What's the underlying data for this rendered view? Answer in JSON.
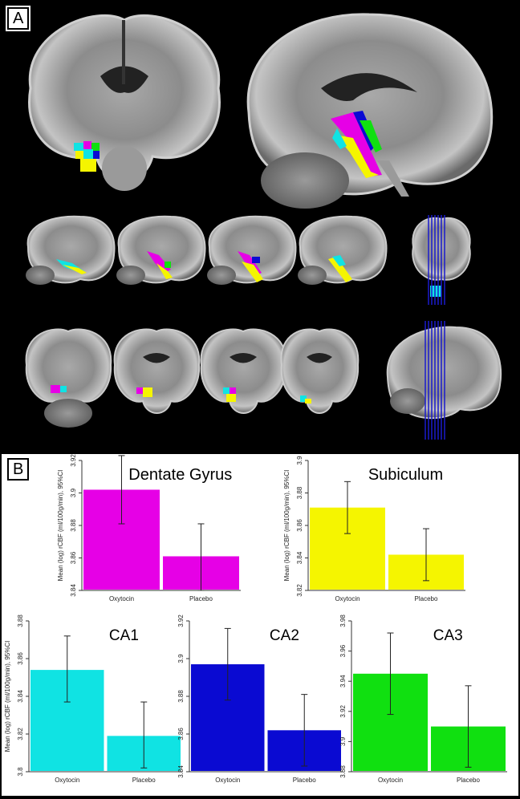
{
  "panel_a": {
    "label": "A",
    "atlas_colors": {
      "dentate_gyrus": "#e600e6",
      "subiculum": "#f5f500",
      "ca1": "#10e3e3",
      "ca2": "#0a0ad2",
      "ca3": "#10e010"
    }
  },
  "panel_b": {
    "label": "B"
  },
  "colors": {
    "background": "#000000",
    "chart_bg": "#ffffff",
    "axis": "#333333",
    "errorbar": "#222222"
  },
  "chart_data": [
    {
      "type": "bar",
      "title": "Dentate Gyrus",
      "categories": [
        "Oxytocin",
        "Placebo"
      ],
      "values": [
        3.902,
        3.861
      ],
      "ci": [
        [
          3.881,
          3.923
        ],
        [
          3.84,
          3.881
        ]
      ],
      "ylabel": "Mean (log) rCBF (ml/100g/min), 95%CI",
      "ylim": [
        3.84,
        3.92
      ],
      "yticks": [
        3.84,
        3.86,
        3.88,
        3.9,
        3.92
      ],
      "ytick_labels": [
        "3.84",
        "3.86",
        "3.88",
        "3.9",
        "3.92"
      ],
      "color": "#e600e6"
    },
    {
      "type": "bar",
      "title": "Subiculum",
      "categories": [
        "Oxytocin",
        "Placebo"
      ],
      "values": [
        3.871,
        3.842
      ],
      "ci": [
        [
          3.855,
          3.887
        ],
        [
          3.826,
          3.858
        ]
      ],
      "ylabel": "Mean (log) rCBF (ml/100g/min), 95%CI",
      "ylim": [
        3.82,
        3.9
      ],
      "yticks": [
        3.82,
        3.84,
        3.86,
        3.88,
        3.9
      ],
      "ytick_labels": [
        "3.82",
        "3.84",
        "3.86",
        "3.88",
        "3.9"
      ],
      "color": "#f5f500"
    },
    {
      "type": "bar",
      "title": "CA1",
      "categories": [
        "Oxytocin",
        "Placebo"
      ],
      "values": [
        3.854,
        3.819
      ],
      "ci": [
        [
          3.837,
          3.872
        ],
        [
          3.802,
          3.837
        ]
      ],
      "ylabel": "Mean (log) rCBF (ml/100g/min), 95%CI",
      "ylim": [
        3.8,
        3.88
      ],
      "yticks": [
        3.8,
        3.82,
        3.84,
        3.86,
        3.88
      ],
      "ytick_labels": [
        "3.8",
        "3.82",
        "3.84",
        "3.86",
        "3.88"
      ],
      "color": "#10e3e3"
    },
    {
      "type": "bar",
      "title": "CA2",
      "categories": [
        "Oxytocin",
        "Placebo"
      ],
      "values": [
        3.897,
        3.862
      ],
      "ci": [
        [
          3.878,
          3.916
        ],
        [
          3.843,
          3.881
        ]
      ],
      "ylabel": "",
      "ylim": [
        3.84,
        3.92
      ],
      "yticks": [
        3.84,
        3.86,
        3.88,
        3.9,
        3.92
      ],
      "ytick_labels": [
        "3.84",
        "3.86",
        "3.88",
        "3.9",
        "3.92"
      ],
      "color": "#0a0ad2"
    },
    {
      "type": "bar",
      "title": "CA3",
      "categories": [
        "Oxytocin",
        "Placebo"
      ],
      "values": [
        3.945,
        3.91
      ],
      "ci": [
        [
          3.918,
          3.972
        ],
        [
          3.883,
          3.937
        ]
      ],
      "ylabel": "",
      "ylim": [
        3.88,
        3.98
      ],
      "yticks": [
        3.88,
        3.9,
        3.92,
        3.94,
        3.96,
        3.98
      ],
      "ytick_labels": [
        "3.88",
        "3.9",
        "3.92",
        "3.94",
        "3.96",
        "3.98"
      ],
      "color": "#10e010"
    }
  ]
}
